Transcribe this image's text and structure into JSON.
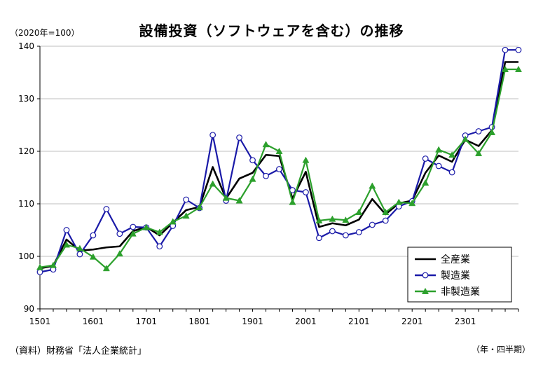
{
  "title": "設備投資（ソフトウェアを含む）の推移",
  "unit_note": "（2020年=100）",
  "source": "（資料）財務省「法人企業統計」",
  "period_note": "（年・四半期）",
  "colors": {
    "all_industries": "#000000",
    "manufacturing": "#1a1aa8",
    "manufacturing_marker_fill": "#ffffff",
    "non_manufacturing": "#2ca02c",
    "axis": "#000000",
    "grid": "#bfbfbf"
  },
  "chart_data": {
    "type": "line",
    "title": "設備投資（ソフトウェアを含む）の推移",
    "ylabel": "（2020年=100）",
    "xlabel": "（年・四半期）",
    "ylim": [
      90,
      140
    ],
    "yticks": [
      90,
      100,
      110,
      120,
      130,
      140
    ],
    "xtick_labels": [
      "1501",
      "1601",
      "1701",
      "1801",
      "1901",
      "2001",
      "2101",
      "2201",
      "2301"
    ],
    "grid": "horizontal",
    "legend_position": "bottom-right",
    "x": [
      "1501",
      "1502",
      "1503",
      "1504",
      "1601",
      "1602",
      "1603",
      "1604",
      "1701",
      "1702",
      "1703",
      "1704",
      "1801",
      "1802",
      "1803",
      "1804",
      "1901",
      "1902",
      "1903",
      "1904",
      "2001",
      "2002",
      "2003",
      "2004",
      "2101",
      "2102",
      "2103",
      "2104",
      "2201",
      "2202",
      "2203",
      "2204",
      "2301",
      "2302",
      "2303",
      "2304",
      "2401"
    ],
    "series": [
      {
        "name": "全産業",
        "color": "#000000",
        "marker": "none",
        "values": [
          97.7,
          98.2,
          103.2,
          101.1,
          101.3,
          101.7,
          101.9,
          104.8,
          105.6,
          104.0,
          106.4,
          108.8,
          109.4,
          117.0,
          111.0,
          114.8,
          115.9,
          119.3,
          119.1,
          111.0,
          116.1,
          105.6,
          106.3,
          105.9,
          107.0,
          110.9,
          108.0,
          110.1,
          110.6,
          115.9,
          119.2,
          118.0,
          122.2,
          121.0,
          124.0,
          137.0,
          137.0
        ]
      },
      {
        "name": "製造業",
        "color": "#1a1aa8",
        "marker": "circle",
        "values": [
          97.0,
          97.5,
          105.0,
          100.4,
          104.0,
          109.0,
          104.3,
          105.6,
          105.5,
          101.9,
          105.8,
          110.8,
          109.2,
          123.1,
          110.6,
          122.6,
          118.3,
          115.3,
          116.6,
          112.6,
          112.2,
          103.5,
          104.8,
          104.0,
          104.6,
          106.0,
          106.8,
          109.5,
          110.5,
          118.6,
          117.2,
          116.0,
          123.0,
          123.8,
          124.6,
          139.3,
          139.3
        ]
      },
      {
        "name": "非製造業",
        "color": "#2ca02c",
        "marker": "triangle",
        "values": [
          97.9,
          98.3,
          102.2,
          101.5,
          99.9,
          97.7,
          100.5,
          104.3,
          105.5,
          104.6,
          106.6,
          107.7,
          109.3,
          113.8,
          111.1,
          110.6,
          114.7,
          121.3,
          120.0,
          110.3,
          118.3,
          106.8,
          107.1,
          106.9,
          108.4,
          113.4,
          108.4,
          110.3,
          110.1,
          114.0,
          120.3,
          119.3,
          122.3,
          119.6,
          123.6,
          135.6,
          135.6
        ]
      }
    ]
  }
}
